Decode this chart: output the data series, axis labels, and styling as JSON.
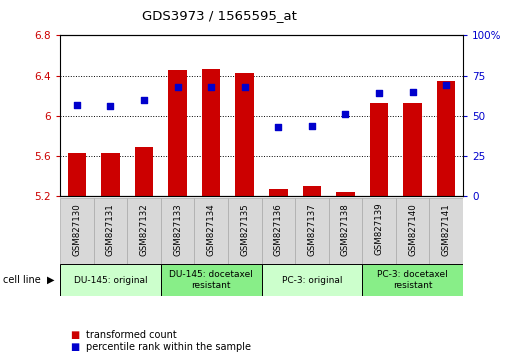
{
  "title": "GDS3973 / 1565595_at",
  "samples": [
    "GSM827130",
    "GSM827131",
    "GSM827132",
    "GSM827133",
    "GSM827134",
    "GSM827135",
    "GSM827136",
    "GSM827137",
    "GSM827138",
    "GSM827139",
    "GSM827140",
    "GSM827141"
  ],
  "bar_values": [
    5.63,
    5.63,
    5.69,
    6.46,
    6.47,
    6.43,
    5.27,
    5.3,
    5.24,
    6.13,
    6.13,
    6.35
  ],
  "dot_values": [
    57,
    56,
    60,
    68,
    68,
    68,
    43,
    44,
    51,
    64,
    65,
    69
  ],
  "bar_color": "#cc0000",
  "dot_color": "#0000cc",
  "ylim_left": [
    5.2,
    6.8
  ],
  "ylim_right": [
    0,
    100
  ],
  "yticks_left": [
    5.2,
    5.6,
    6.0,
    6.4,
    6.8
  ],
  "yticks_right": [
    0,
    25,
    50,
    75,
    100
  ],
  "ytick_labels_left": [
    "5.2",
    "5.6",
    "6",
    "6.4",
    "6.8"
  ],
  "ytick_labels_right": [
    "0",
    "25",
    "50",
    "75",
    "100%"
  ],
  "groups": [
    {
      "label": "DU-145: original",
      "start": 0,
      "end": 3,
      "color": "#ccffcc"
    },
    {
      "label": "DU-145: docetaxel\nresistant",
      "start": 3,
      "end": 6,
      "color": "#88ee88"
    },
    {
      "label": "PC-3: original",
      "start": 6,
      "end": 9,
      "color": "#ccffcc"
    },
    {
      "label": "PC-3: docetaxel\nresistant",
      "start": 9,
      "end": 12,
      "color": "#88ee88"
    }
  ],
  "cell_line_label": "cell line",
  "legend_items": [
    {
      "color": "#cc0000",
      "label": "transformed count"
    },
    {
      "color": "#0000cc",
      "label": "percentile rank within the sample"
    }
  ],
  "bar_width": 0.55,
  "baseline": 5.2,
  "grid_color": "#000000",
  "grid_linewidth": 0.7,
  "xtick_bg": "#d8d8d8",
  "xtick_border": "#aaaaaa"
}
